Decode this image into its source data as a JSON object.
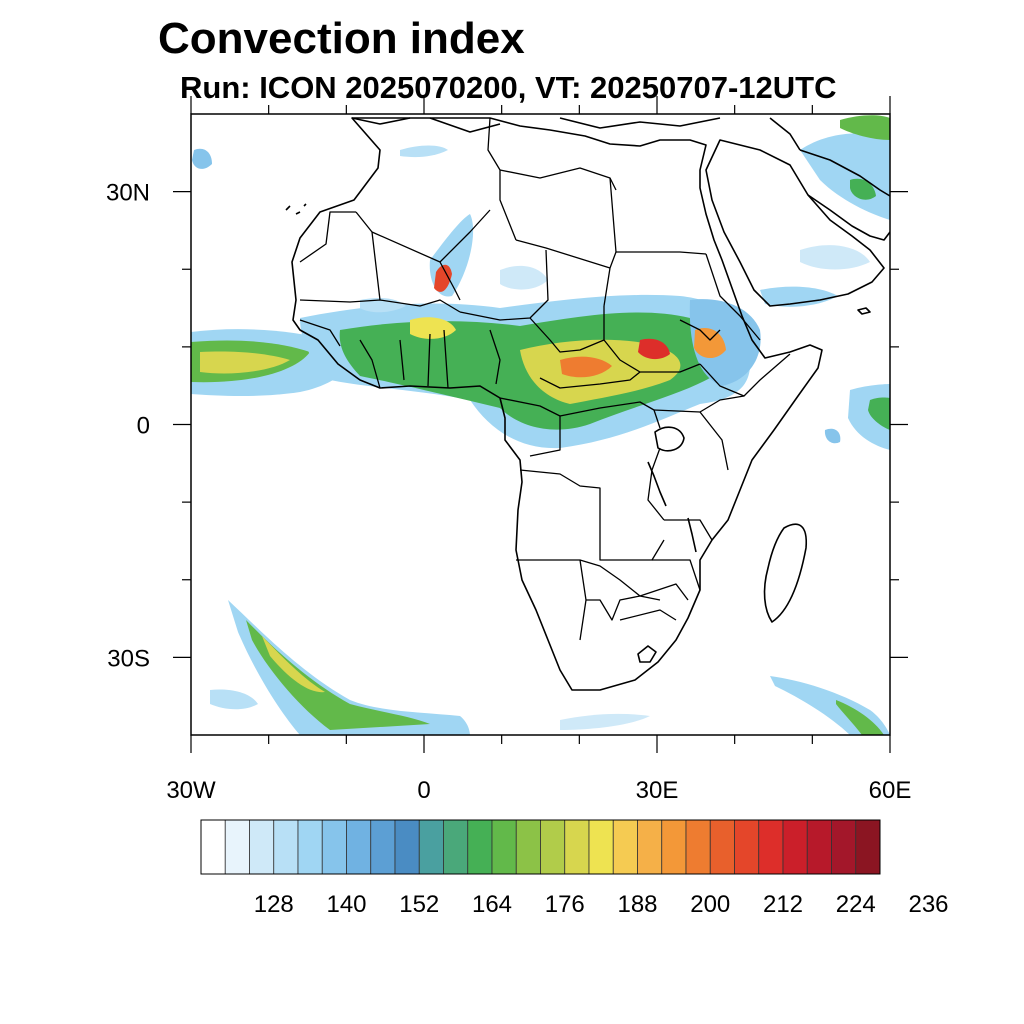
{
  "title": "Convection index",
  "subtitle": "Run: ICON 2025070200,  VT: 20250707-12UTC",
  "map": {
    "extent": {
      "lon": [
        -30,
        60
      ],
      "lat": [
        -40,
        40
      ]
    },
    "projection": "cylindrical equidistant",
    "lat_ticks": [
      {
        "value": 30,
        "label": "30N"
      },
      {
        "value": 0,
        "label": "0"
      },
      {
        "value": -30,
        "label": "30S"
      }
    ],
    "lon_ticks": [
      {
        "value": -30,
        "label": "30W"
      },
      {
        "value": 0,
        "label": "0"
      },
      {
        "value": 30,
        "label": "30E"
      },
      {
        "value": 60,
        "label": "60E"
      }
    ],
    "minor_tick_step_degrees": 10
  },
  "colorbar": {
    "labels": [
      "128",
      "140",
      "152",
      "164",
      "176",
      "188",
      "200",
      "212",
      "224",
      "236"
    ],
    "colors": [
      "#ffffff",
      "#e8f4fc",
      "#cfe9f8",
      "#b8e0f6",
      "#a0d6f3",
      "#86c4eb",
      "#70b2e2",
      "#5c9fd4",
      "#4a8cc3",
      "#4aa0a0",
      "#4aa87a",
      "#45b055",
      "#62b94a",
      "#8cc247",
      "#b1cc4a",
      "#d7d64e",
      "#eee351",
      "#f5cb52",
      "#f5b048",
      "#f39838",
      "#ee7c30",
      "#e8602c",
      "#e4462a",
      "#dd2e2a",
      "#cb1f2a",
      "#b7192a",
      "#a3172a",
      "#8b1522"
    ]
  }
}
